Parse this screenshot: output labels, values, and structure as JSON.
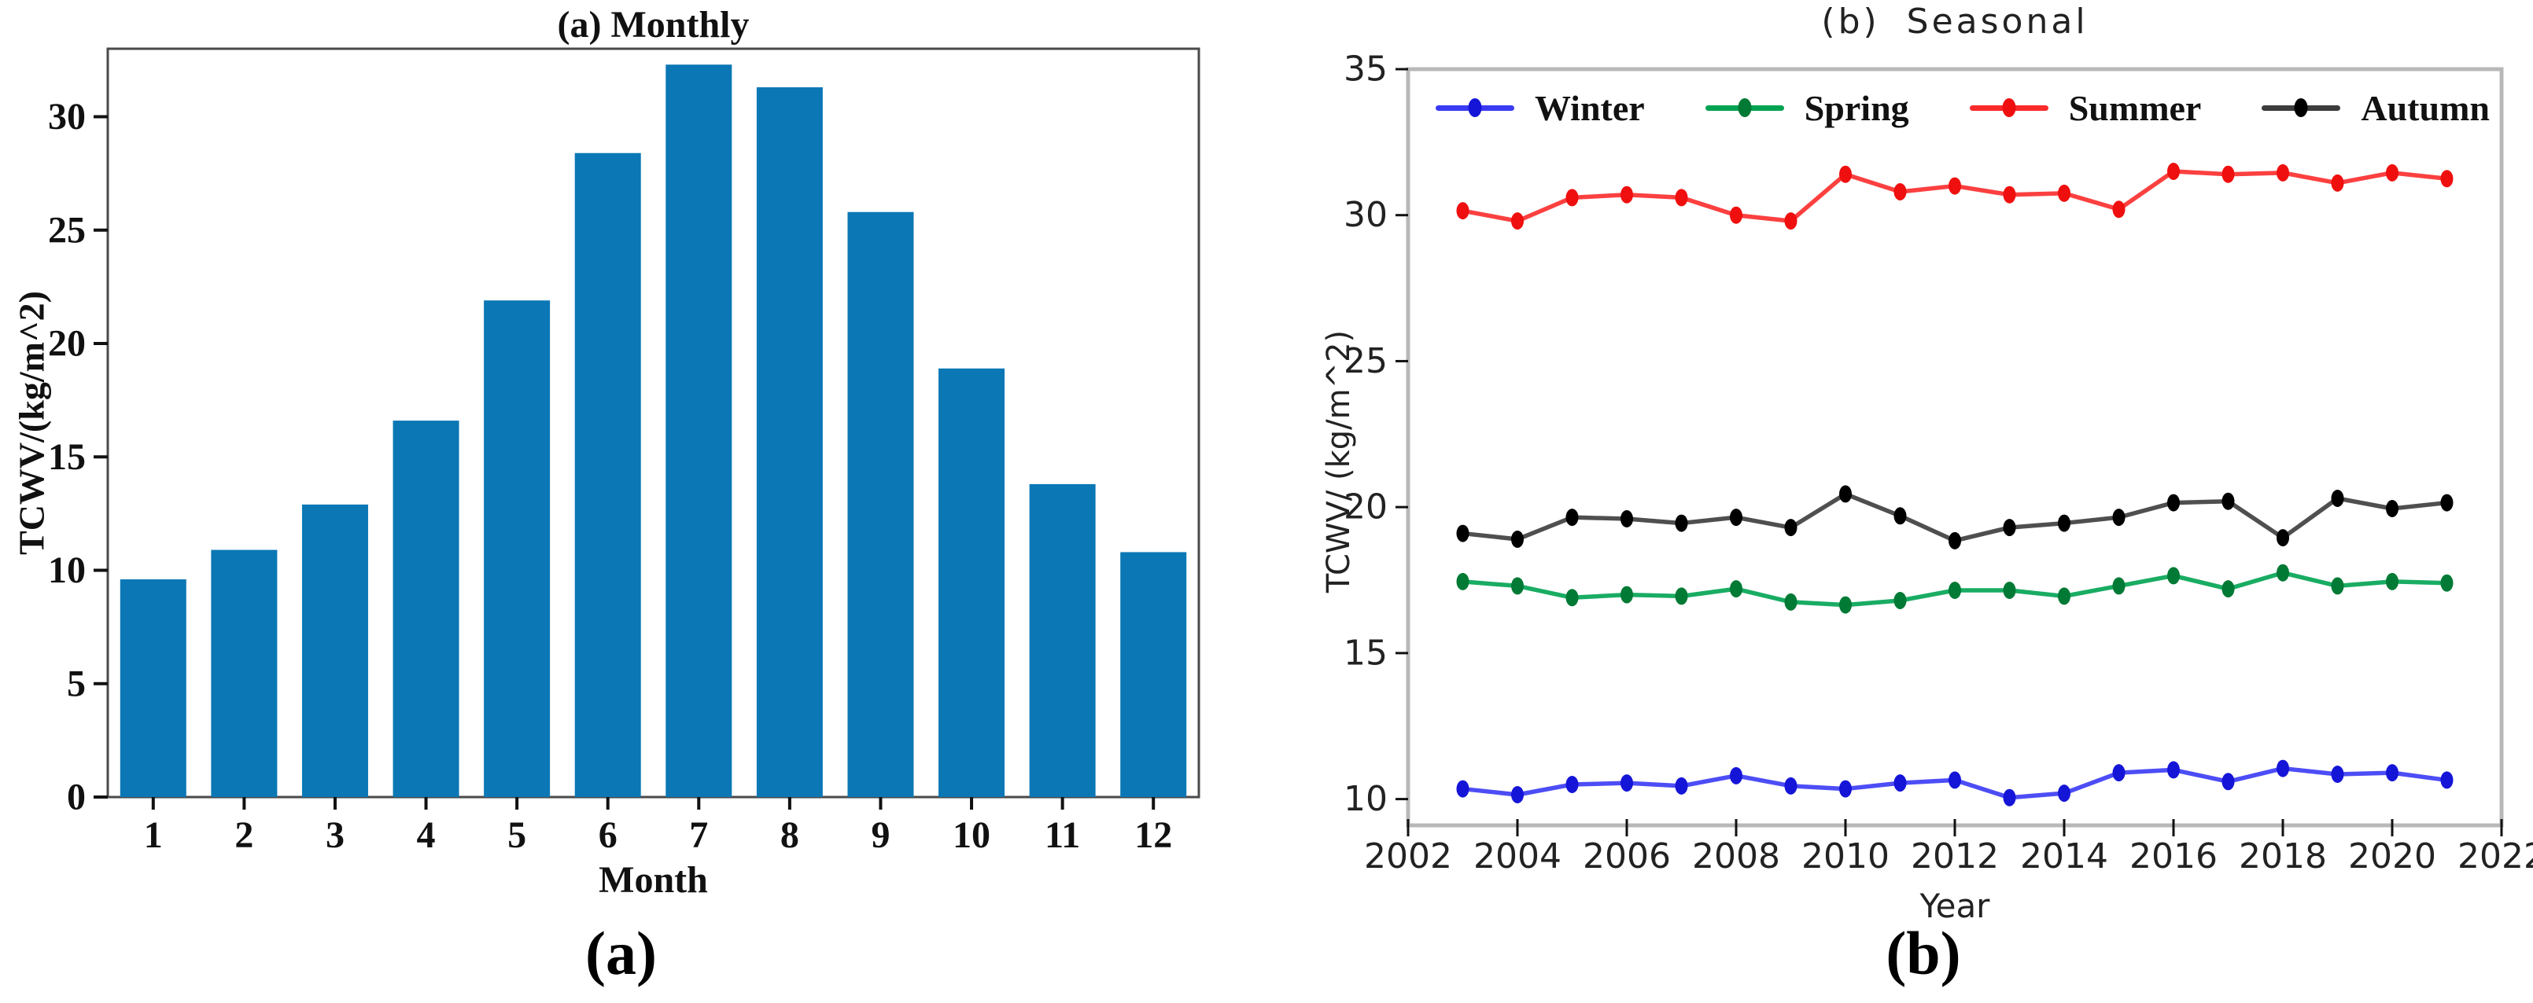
{
  "figure": {
    "background": "#ffffff",
    "panels": [
      {
        "label": "(a)"
      },
      {
        "label": "(b)"
      }
    ]
  },
  "chart_data": [
    {
      "type": "bar",
      "title": "(a) Monthly",
      "xlabel": "Month",
      "ylabel": "TCWV/(kg/m^2)",
      "categories": [
        "1",
        "2",
        "3",
        "4",
        "5",
        "6",
        "7",
        "8",
        "9",
        "10",
        "11",
        "12"
      ],
      "values": [
        9.6,
        10.9,
        12.9,
        16.6,
        21.9,
        28.4,
        32.3,
        31.3,
        25.8,
        18.9,
        13.8,
        10.8
      ],
      "ylim": [
        0,
        33
      ],
      "yticks": [
        0,
        5,
        10,
        15,
        20,
        25,
        30
      ],
      "bar_color": "#0b77b5",
      "grid": false,
      "legend": "none"
    },
    {
      "type": "line",
      "title": "(b) Seasonal",
      "xlabel": "Year",
      "ylabel": "TCWV/ (kg/m^2)",
      "x": [
        2003,
        2004,
        2005,
        2006,
        2007,
        2008,
        2009,
        2010,
        2011,
        2012,
        2013,
        2014,
        2015,
        2016,
        2017,
        2018,
        2019,
        2020,
        2021
      ],
      "xlim": [
        2002,
        2022
      ],
      "xticks": [
        2002,
        2004,
        2006,
        2008,
        2010,
        2012,
        2014,
        2016,
        2018,
        2020,
        2022
      ],
      "ylim": [
        9.1,
        35
      ],
      "yticks": [
        10,
        15,
        20,
        25,
        30,
        35
      ],
      "grid": false,
      "legend_position": "top-inside-row",
      "series": [
        {
          "name": "Winter",
          "color": "#3a3af5",
          "marker_color": "#1515d8",
          "values": [
            10.35,
            10.15,
            10.5,
            10.55,
            10.45,
            10.8,
            10.45,
            10.35,
            10.55,
            10.65,
            10.05,
            10.2,
            10.9,
            11.0,
            10.6,
            11.05,
            10.85,
            10.9,
            10.65
          ]
        },
        {
          "name": "Spring",
          "color": "#00a352",
          "marker_color": "#007a35",
          "values": [
            17.45,
            17.3,
            16.9,
            17.0,
            16.95,
            17.2,
            16.75,
            16.65,
            16.8,
            17.15,
            17.15,
            16.95,
            17.3,
            17.65,
            17.2,
            17.75,
            17.3,
            17.45,
            17.4
          ]
        },
        {
          "name": "Summer",
          "color": "#fb2b2b",
          "marker_color": "#ef0f0f",
          "values": [
            30.15,
            29.8,
            30.6,
            30.7,
            30.6,
            30.0,
            29.8,
            31.4,
            30.8,
            31.0,
            30.7,
            30.75,
            30.2,
            31.5,
            31.4,
            31.45,
            31.1,
            31.45,
            31.25
          ]
        },
        {
          "name": "Autumn",
          "color": "#3c3c3c",
          "marker_color": "#000000",
          "values": [
            19.1,
            18.9,
            19.65,
            19.6,
            19.45,
            19.65,
            19.3,
            20.45,
            19.7,
            18.85,
            19.3,
            19.45,
            19.65,
            20.15,
            20.2,
            18.95,
            20.3,
            19.95,
            20.15
          ]
        }
      ]
    }
  ]
}
